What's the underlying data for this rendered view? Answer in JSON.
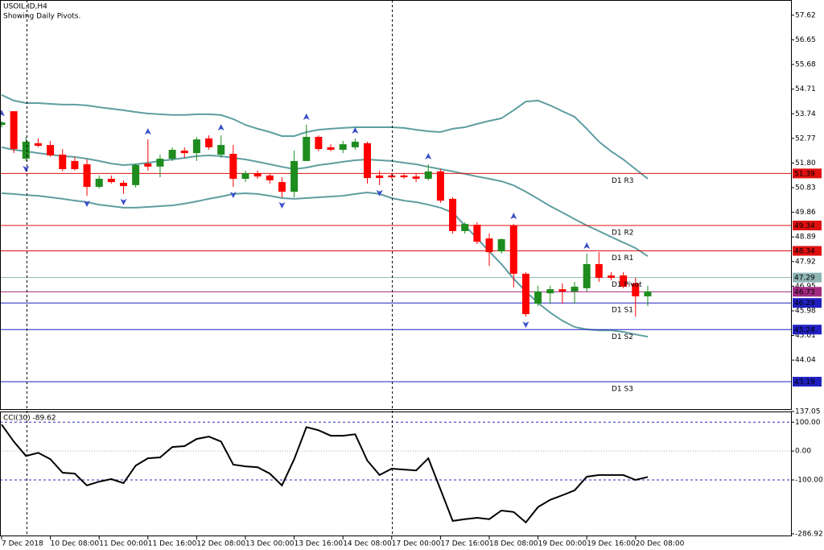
{
  "header": {
    "symbol": "USOIL.ID,H4",
    "note": "Showing Daily Pivots."
  },
  "chart_data": [
    {
      "type": "candlestick",
      "categories": [
        "7 Dec 2018",
        null,
        null,
        null,
        "10 Dec 08:00",
        null,
        null,
        null,
        "11 Dec 00:00",
        null,
        null,
        null,
        "11 Dec 16:00",
        null,
        null,
        null,
        "12 Dec 08:00",
        null,
        null,
        null,
        "13 Dec 00:00",
        null,
        null,
        null,
        "13 Dec 16:00",
        null,
        null,
        null,
        "14 Dec 08:00",
        null,
        null,
        null,
        "17 Dec 00:00",
        null,
        null,
        null,
        "17 Dec 16:00",
        null,
        null,
        null,
        "18 Dec 08:00",
        null,
        null,
        null,
        "19 Dec 00:00",
        null,
        null,
        null,
        "19 Dec 16:00",
        null,
        null,
        null,
        "20 Dec 08:00",
        null
      ],
      "open": [
        53.3,
        53.84,
        51.97,
        52.58,
        52.51,
        52.13,
        51.88,
        51.75,
        50.86,
        51.18,
        51.02,
        50.93,
        51.78,
        51.66,
        51.97,
        52.29,
        52.19,
        52.77,
        52.13,
        52.16,
        51.18,
        51.4,
        51.31,
        51.05,
        50.67,
        51.88,
        52.83,
        52.42,
        52.32,
        52.42,
        52.58,
        51.31,
        51.31,
        51.31,
        51.27,
        51.18,
        51.47,
        50.39,
        49.12,
        49.37,
        48.83,
        48.32,
        49.34,
        47.44,
        46.26,
        46.67,
        46.83,
        46.74,
        46.87,
        47.82,
        47.37,
        47.37,
        47.06,
        46.55
      ],
      "high": [
        53.45,
        53.84,
        52.83,
        52.77,
        52.67,
        52.35,
        52.04,
        51.94,
        51.31,
        51.31,
        51.12,
        51.78,
        52.73,
        52.13,
        52.42,
        52.42,
        52.83,
        52.89,
        52.89,
        52.51,
        51.5,
        51.5,
        51.4,
        51.24,
        52.29,
        53.31,
        52.89,
        52.54,
        52.67,
        52.77,
        52.64,
        51.5,
        51.4,
        51.4,
        51.4,
        51.75,
        51.56,
        50.45,
        49.47,
        49.47,
        49.02,
        48.83,
        49.4,
        47.5,
        46.96,
        46.96,
        47.06,
        47.12,
        48.23,
        48.29,
        47.5,
        47.5,
        47.28,
        46.96
      ],
      "low": [
        53.2,
        52.19,
        51.88,
        52.42,
        52.04,
        51.47,
        51.5,
        50.51,
        50.8,
        50.99,
        50.58,
        50.83,
        51.5,
        51.24,
        51.88,
        52.0,
        51.88,
        52.32,
        52.0,
        50.86,
        51.05,
        51.18,
        50.99,
        50.45,
        50.45,
        51.88,
        52.26,
        52.26,
        52.19,
        52.32,
        50.99,
        50.93,
        51.18,
        51.18,
        51.05,
        51.12,
        50.23,
        49.02,
        49.02,
        48.61,
        47.75,
        48.23,
        46.9,
        45.75,
        46.17,
        46.26,
        46.26,
        46.26,
        46.74,
        47.12,
        47.18,
        46.87,
        45.75,
        46.17
      ],
      "close": [
        53.4,
        52.35,
        52.64,
        52.48,
        52.1,
        51.56,
        51.56,
        50.86,
        51.18,
        51.05,
        50.89,
        51.72,
        51.66,
        51.97,
        52.32,
        52.19,
        52.73,
        52.42,
        52.51,
        51.18,
        51.4,
        51.27,
        51.12,
        50.67,
        51.88,
        52.83,
        52.35,
        52.32,
        52.54,
        52.64,
        51.21,
        51.21,
        51.24,
        51.24,
        51.18,
        51.47,
        50.32,
        49.12,
        49.4,
        48.7,
        48.29,
        48.8,
        47.44,
        45.85,
        46.74,
        46.83,
        46.74,
        46.93,
        47.82,
        47.28,
        47.28,
        46.93,
        46.55,
        46.74
      ],
      "up_color": "#1e8c1e",
      "down_color": "#ff0000",
      "bands": {
        "color": "#5f9ea0",
        "upper": [
          54.48,
          54.26,
          54.16,
          54.16,
          54.13,
          54.1,
          54.1,
          54.07,
          54.0,
          53.94,
          53.88,
          53.81,
          53.75,
          53.72,
          53.69,
          53.69,
          53.72,
          53.72,
          53.69,
          53.53,
          53.3,
          53.15,
          53.02,
          52.86,
          52.86,
          53.02,
          53.11,
          53.15,
          53.18,
          53.21,
          53.21,
          53.21,
          53.21,
          53.18,
          53.11,
          53.05,
          53.02,
          53.15,
          53.21,
          53.34,
          53.46,
          53.56,
          53.88,
          54.22,
          54.26,
          54.07,
          53.84,
          53.62,
          53.15,
          52.64,
          52.26,
          51.94,
          51.56,
          51.18
        ],
        "middle": [
          52.42,
          52.32,
          52.26,
          52.19,
          52.13,
          52.07,
          52.04,
          51.97,
          51.88,
          51.78,
          51.72,
          51.75,
          51.81,
          51.88,
          51.94,
          52.0,
          52.07,
          52.1,
          52.07,
          52.0,
          51.94,
          51.85,
          51.75,
          51.65,
          51.56,
          51.62,
          51.72,
          51.78,
          51.85,
          51.91,
          51.94,
          51.91,
          51.88,
          51.81,
          51.75,
          51.65,
          51.56,
          51.47,
          51.37,
          51.27,
          51.18,
          51.08,
          50.92,
          50.67,
          50.39,
          50.1,
          49.85,
          49.59,
          49.34,
          49.12,
          48.89,
          48.67,
          48.45,
          48.13
        ],
        "lower": [
          50.61,
          50.58,
          50.54,
          50.51,
          50.45,
          50.39,
          50.32,
          50.26,
          50.16,
          50.1,
          50.04,
          50.04,
          50.07,
          50.1,
          50.13,
          50.2,
          50.29,
          50.39,
          50.48,
          50.58,
          50.61,
          50.58,
          50.51,
          50.42,
          50.39,
          50.42,
          50.45,
          50.48,
          50.51,
          50.58,
          50.64,
          50.58,
          50.42,
          50.32,
          50.26,
          50.16,
          50.04,
          49.85,
          49.34,
          48.83,
          48.32,
          47.82,
          47.24,
          46.74,
          46.29,
          45.91,
          45.59,
          45.34,
          45.25,
          45.21,
          45.21,
          45.15,
          45.05,
          44.96
        ]
      },
      "fractals_up": [
        0,
        12,
        18,
        25,
        29,
        35,
        42,
        48
      ],
      "fractals_down": [
        2,
        7,
        10,
        19,
        23,
        31,
        43
      ],
      "fractal_color": "#3a4fc8",
      "pivots": [
        {
          "name": "D1 R3",
          "value": 51.39,
          "color": "#e01010"
        },
        {
          "name": "D1 R2",
          "value": 49.34,
          "color": "#e01010"
        },
        {
          "name": "D1 R1",
          "value": 48.34,
          "color": "#e01010"
        },
        {
          "name": "D1 Pivot",
          "value": 47.29,
          "color": "#8fb4b4"
        },
        {
          "name": "D1 S1",
          "value": 46.29,
          "color": "#2020c0"
        },
        {
          "name": "D1 S2",
          "value": 45.24,
          "color": "#2020c0"
        },
        {
          "name": "D1 S3",
          "value": 43.19,
          "color": "#2020c0"
        }
      ],
      "current_price": {
        "value": 46.73,
        "color": "#a02a80"
      },
      "ylim": [
        42.11,
        58.22
      ],
      "yticks": [
        57.62,
        56.65,
        55.68,
        54.71,
        53.74,
        52.77,
        {
          "value": 51.8,
          "label": "51.80"
        },
        50.83,
        49.86,
        48.89,
        47.92,
        46.95,
        45.98,
        45.01,
        44.04
      ]
    },
    {
      "type": "line",
      "title": "CCI(30) -89.62",
      "color": "#000000",
      "level_color": "#2a2ac8",
      "values": [
        92,
        33,
        -17,
        -6,
        -28,
        -75,
        -78,
        -119,
        -106,
        -97,
        -111,
        -50,
        -25,
        -22,
        14,
        17,
        42,
        50,
        33,
        -47,
        -53,
        -56,
        -78,
        -119,
        -28,
        83,
        72,
        53,
        53,
        58,
        -33,
        -83,
        -61,
        -64,
        -67,
        -25,
        -133,
        -242,
        -236,
        -231,
        -236,
        -206,
        -211,
        -247,
        -194,
        -169,
        -153,
        -136,
        -89,
        -83,
        -83,
        -83,
        -100,
        -89.62
      ],
      "ylim": [
        -286.92,
        137.05
      ],
      "yticks": [
        137.05,
        {
          "value": 100,
          "label": "100.00"
        },
        {
          "value": 0,
          "label": "0.00"
        },
        {
          "value": -100,
          "label": "-100.00"
        },
        -286.92
      ]
    }
  ]
}
